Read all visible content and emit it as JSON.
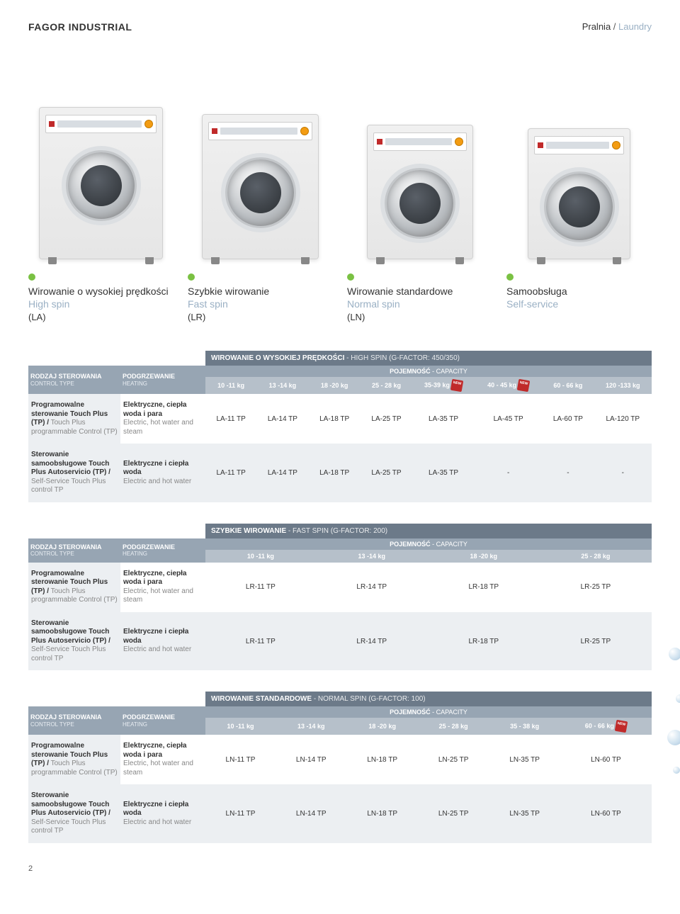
{
  "header": {
    "brand": "FAGOR INDUSTRIAL",
    "category_pl": "Pralnia",
    "category_sep": " / ",
    "category_en": "Laundry"
  },
  "categories": [
    {
      "title_pl": "Wirowanie o wysokiej prędkości",
      "title_en": "High spin",
      "code": "(LA)",
      "machine_class": "m-lg"
    },
    {
      "title_pl": "Szybkie wirowanie",
      "title_en": "Fast spin",
      "code": "(LR)",
      "machine_class": "m-md"
    },
    {
      "title_pl": "Wirowanie standardowe",
      "title_en": "Normal spin",
      "code": "(LN)",
      "machine_class": "m-sm1"
    },
    {
      "title_pl": "Samoobsługa",
      "title_en": "Self-service",
      "code": "",
      "machine_class": "m-sm2"
    }
  ],
  "tables": [
    {
      "title_pl": "WIROWANIE O WYSOKIEJ PRĘDKOŚCI",
      "title_en": "HIGH SPIN (G-FACTOR: 450/350)",
      "capacity_label_pl": "POJEMNOŚĆ",
      "capacity_label_en": "CAPACITY",
      "side_header": {
        "l1_pl": "RODZAJ STEROWANIA",
        "l1_en": "CONTROL TYPE",
        "l2_pl": "PODGRZEWANIE",
        "l2_en": "HEATING"
      },
      "columns": [
        "10 -11 kg",
        "13 -14 kg",
        "18 -20 kg",
        "25 - 28 kg",
        "35-39 kg",
        "40 - 45 kg",
        "60 - 66 kg",
        "120 -133 kg"
      ],
      "new_badges": [
        4,
        5
      ],
      "rows": [
        {
          "label_pl": "Programowalne sterowanie Touch Plus (TP) /",
          "label_en": "Touch Plus programmable Control (TP)",
          "heating_pl": "Elektryczne, ciepła woda i para",
          "heating_en": "Electric, hot water and steam",
          "cells": [
            "LA-11 TP",
            "LA-14 TP",
            "LA-18 TP",
            "LA-25 TP",
            "LA-35 TP",
            "LA-45 TP",
            "LA-60 TP",
            "LA-120 TP"
          ],
          "alt": false
        },
        {
          "label_pl": "Sterowanie samoobsługowe Touch Plus Autoservicio (TP) /",
          "label_en": "Self-Service Touch Plus control TP",
          "heating_pl": "Elektryczne i ciepła woda",
          "heating_en": "Electric and hot water",
          "cells": [
            "LA-11 TP",
            "LA-14 TP",
            "LA-18 TP",
            "LA-25 TP",
            "LA-35 TP",
            "-",
            "-",
            "-"
          ],
          "alt": true
        }
      ]
    },
    {
      "title_pl": "SZYBKIE WIROWANIE",
      "title_en": "FAST SPIN (G-FACTOR: 200)",
      "capacity_label_pl": "POJEMNOŚĆ",
      "capacity_label_en": "CAPACITY",
      "side_header": {
        "l1_pl": "RODZAJ STEROWANIA",
        "l1_en": "CONTROL TYPE",
        "l2_pl": "PODGRZEWANIE",
        "l2_en": "HEATING"
      },
      "columns": [
        "10 -11 kg",
        "13 -14 kg",
        "18 -20 kg",
        "25 - 28 kg"
      ],
      "new_badges": [],
      "rows": [
        {
          "label_pl": "Programowalne sterowanie Touch Plus (TP) /",
          "label_en": "Touch Plus programmable Control (TP)",
          "heating_pl": "Elektryczne, ciepła woda i para",
          "heating_en": "Electric, hot water and steam",
          "cells": [
            "LR-11 TP",
            "LR-14 TP",
            "LR-18 TP",
            "LR-25 TP"
          ],
          "alt": false
        },
        {
          "label_pl": "Sterowanie samoobsługowe Touch Plus Autoservicio (TP) /",
          "label_en": "Self-Service Touch Plus control TP",
          "heating_pl": "Elektryczne i ciepła woda",
          "heating_en": "Electric and hot water",
          "cells": [
            "LR-11 TP",
            "LR-14 TP",
            "LR-18 TP",
            "LR-25 TP"
          ],
          "alt": true
        }
      ]
    },
    {
      "title_pl": "WIROWANIE STANDARDOWE",
      "title_en": "NORMAL SPIN (G-FACTOR: 100)",
      "capacity_label_pl": "POJEMNOŚĆ",
      "capacity_label_en": "CAPACITY",
      "side_header": {
        "l1_pl": "RODZAJ STEROWANIA",
        "l1_en": "CONTROL TYPE",
        "l2_pl": "PODGRZEWANIE",
        "l2_en": "HEATING"
      },
      "columns": [
        "10 -11 kg",
        "13 -14 kg",
        "18 -20 kg",
        "25 - 28 kg",
        "35 - 38 kg",
        "60 - 66 kg"
      ],
      "new_badges": [
        5
      ],
      "rows": [
        {
          "label_pl": "Programowalne sterowanie Touch Plus (TP) /",
          "label_en": "Touch Plus programmable Control (TP)",
          "heating_pl": "Elektryczne, ciepła woda i para",
          "heating_en": "Electric, hot water and steam",
          "cells": [
            "LN-11 TP",
            "LN-14 TP",
            "LN-18 TP",
            "LN-25 TP",
            "LN-35 TP",
            "LN-60 TP"
          ],
          "alt": false
        },
        {
          "label_pl": "Sterowanie samoobsługowe Touch Plus Autoservicio (TP) /",
          "label_en": "Self-Service Touch Plus control TP",
          "heating_pl": "Elektryczne i ciepła woda",
          "heating_en": "Electric and hot water",
          "cells": [
            "LN-11 TP",
            "LN-14 TP",
            "LN-18 TP",
            "LN-25 TP",
            "LN-35 TP",
            "LN-60 TP"
          ],
          "alt": true
        }
      ]
    }
  ],
  "page_number": "2",
  "colors": {
    "green_dot": "#7ac143",
    "table_title_bg": "#6c7a89",
    "table_cap_bg": "#97a5b3",
    "table_hdr_bg": "#b6c0ca",
    "row_alt_bg": "#eceff2",
    "en_text": "#9ab0c4",
    "new_red": "#c02a2a"
  }
}
